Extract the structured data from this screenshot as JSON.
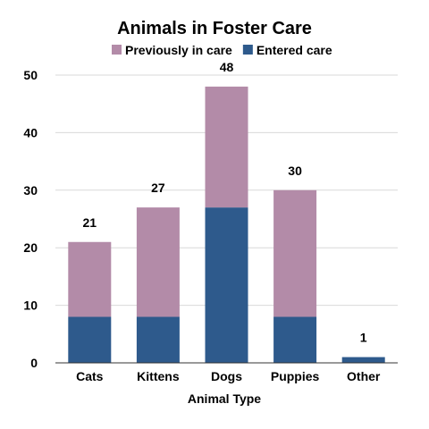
{
  "chart_data": {
    "type": "bar",
    "stacked": true,
    "title": "Animals in Foster Care",
    "xlabel": "Animal Type",
    "ylabel": "",
    "categories": [
      "Cats",
      "Kittens",
      "Dogs",
      "Puppies",
      "Other"
    ],
    "series": [
      {
        "name": "Entered care",
        "values": [
          8,
          8,
          27,
          8,
          1
        ],
        "color": "#2e5a8c"
      },
      {
        "name": "Previously in care",
        "values": [
          13,
          19,
          21,
          22,
          0
        ],
        "color": "#b38ba8"
      }
    ],
    "totals": [
      21,
      27,
      48,
      30,
      1
    ],
    "legend_order": [
      "Previously in care",
      "Entered care"
    ],
    "legend_position": "top",
    "ylim": [
      0,
      50
    ],
    "yticks": [
      0,
      10,
      20,
      30,
      40,
      50
    ],
    "grid": true
  }
}
